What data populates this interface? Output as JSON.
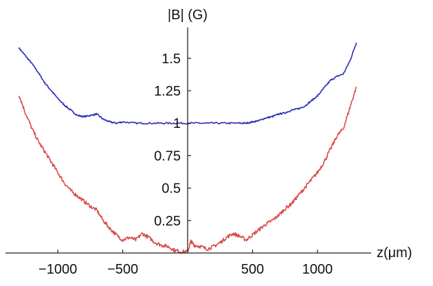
{
  "chart_data": {
    "type": "line",
    "xlabel": "z(μm)",
    "ylabel": "|B| (G)",
    "xlim": [
      -1350,
      1350
    ],
    "ylim": [
      0,
      1.7
    ],
    "grid": false,
    "x_ticks": [
      -1000,
      -500,
      500,
      1000
    ],
    "x_tick_labels": [
      "−1000",
      "−500",
      "500",
      "1000"
    ],
    "y_ticks": [
      0.25,
      0.5,
      0.75,
      1,
      1.25,
      1.5
    ],
    "y_tick_labels": [
      "0.25",
      "0.5",
      "0.75",
      "1",
      "1.25",
      "1.5"
    ],
    "series": [
      {
        "color": "#2b2bb5",
        "x": [
          -1300,
          -1250,
          -1200,
          -1150,
          -1100,
          -1050,
          -1000,
          -950,
          -900,
          -850,
          -800,
          -750,
          -700,
          -650,
          -600,
          -550,
          -500,
          -400,
          -300,
          -200,
          -100,
          0,
          100,
          200,
          300,
          400,
          450,
          500,
          550,
          600,
          650,
          700,
          750,
          800,
          850,
          900,
          950,
          1000,
          1050,
          1100,
          1150,
          1200,
          1250,
          1300
        ],
        "y": [
          1.58,
          1.52,
          1.46,
          1.39,
          1.31,
          1.25,
          1.19,
          1.14,
          1.1,
          1.06,
          1.05,
          1.06,
          1.07,
          1.03,
          1.01,
          1.0,
          1.01,
          1.0,
          1.0,
          1.0,
          1.0,
          1.0,
          1.0,
          1.0,
          1.0,
          1.0,
          1.0,
          1.01,
          1.02,
          1.04,
          1.05,
          1.07,
          1.08,
          1.1,
          1.11,
          1.13,
          1.17,
          1.21,
          1.27,
          1.33,
          1.36,
          1.38,
          1.48,
          1.62
        ]
      },
      {
        "color": "#d94a4a",
        "x": [
          -1300,
          -1250,
          -1200,
          -1150,
          -1100,
          -1050,
          -1000,
          -950,
          -900,
          -850,
          -800,
          -750,
          -700,
          -650,
          -600,
          -550,
          -500,
          -450,
          -400,
          -350,
          -300,
          -250,
          -200,
          -150,
          -100,
          -50,
          0,
          25,
          50,
          100,
          150,
          200,
          250,
          300,
          350,
          400,
          450,
          500,
          550,
          600,
          650,
          700,
          750,
          800,
          850,
          900,
          950,
          1000,
          1050,
          1100,
          1150,
          1200,
          1250,
          1300
        ],
        "y": [
          1.22,
          1.08,
          0.96,
          0.86,
          0.78,
          0.7,
          0.62,
          0.54,
          0.48,
          0.44,
          0.4,
          0.36,
          0.33,
          0.25,
          0.19,
          0.14,
          0.1,
          0.12,
          0.1,
          0.15,
          0.12,
          0.08,
          0.06,
          0.05,
          0.02,
          0.01,
          0.01,
          0.09,
          0.06,
          0.05,
          0.03,
          0.05,
          0.08,
          0.12,
          0.15,
          0.13,
          0.1,
          0.14,
          0.18,
          0.22,
          0.25,
          0.29,
          0.34,
          0.38,
          0.44,
          0.5,
          0.56,
          0.62,
          0.7,
          0.8,
          0.9,
          0.96,
          1.12,
          1.28
        ]
      }
    ]
  }
}
